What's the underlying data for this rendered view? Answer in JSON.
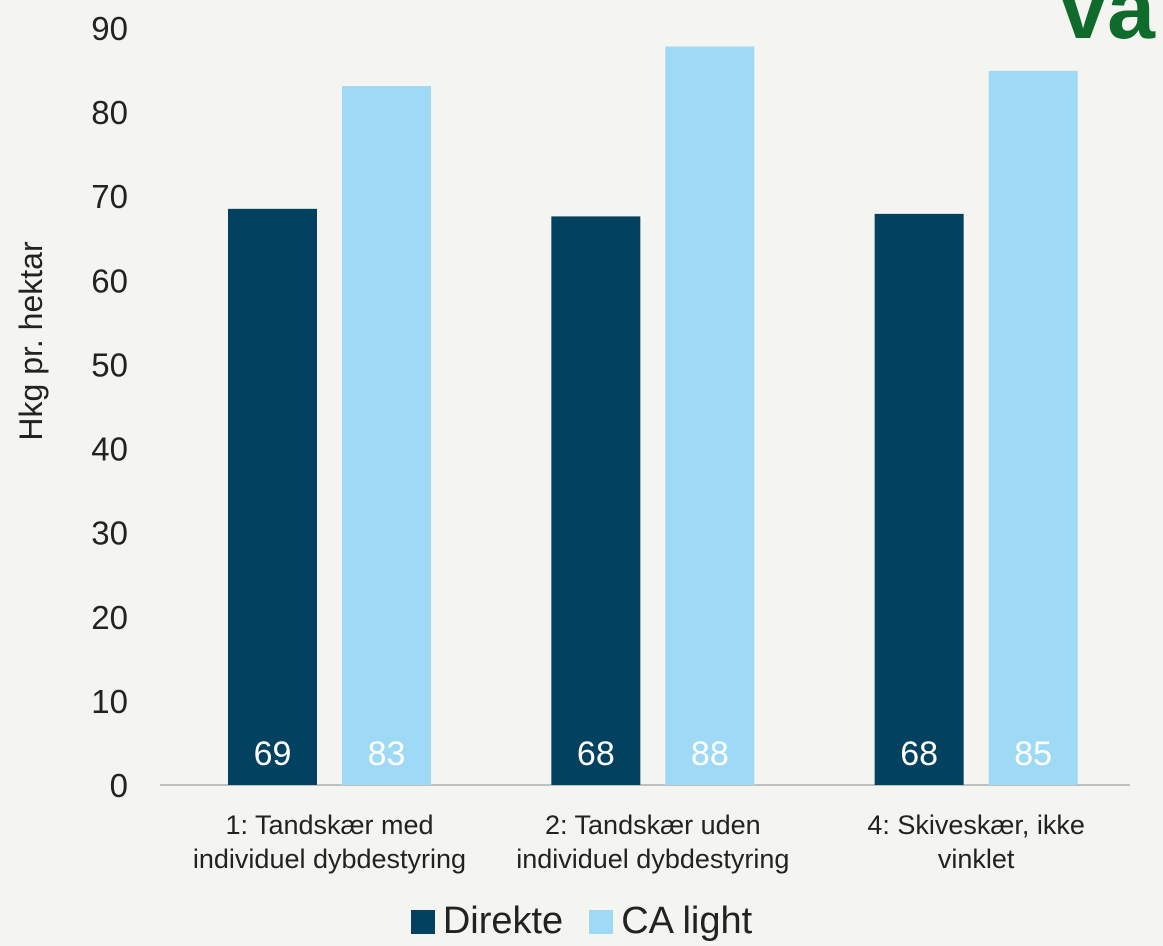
{
  "corner_text": "va",
  "chart_data": {
    "type": "bar",
    "title": "",
    "xlabel": "",
    "ylabel": "Hkg pr. hektar",
    "ylim": [
      0,
      90
    ],
    "yticks": [
      0,
      10,
      20,
      30,
      40,
      50,
      60,
      70,
      80,
      90
    ],
    "grid": false,
    "legend_position": "bottom",
    "categories": [
      [
        "1: Tandskær med",
        "individuel dybdestyring"
      ],
      [
        "2: Tandskær uden",
        "individuel dybdestyring"
      ],
      [
        "4: Skiveskær, ikke",
        "vinklet"
      ]
    ],
    "series": [
      {
        "name": "Direkte",
        "color": "#02415f",
        "values": [
          68.5,
          67.6,
          67.9
        ],
        "labels": [
          "69",
          "68",
          "68"
        ]
      },
      {
        "name": "CA light",
        "color": "#9ed9f6",
        "values": [
          83.1,
          87.8,
          84.9
        ],
        "labels": [
          "83",
          "88",
          "85"
        ]
      }
    ],
    "data_label_color": "#ffffff"
  }
}
